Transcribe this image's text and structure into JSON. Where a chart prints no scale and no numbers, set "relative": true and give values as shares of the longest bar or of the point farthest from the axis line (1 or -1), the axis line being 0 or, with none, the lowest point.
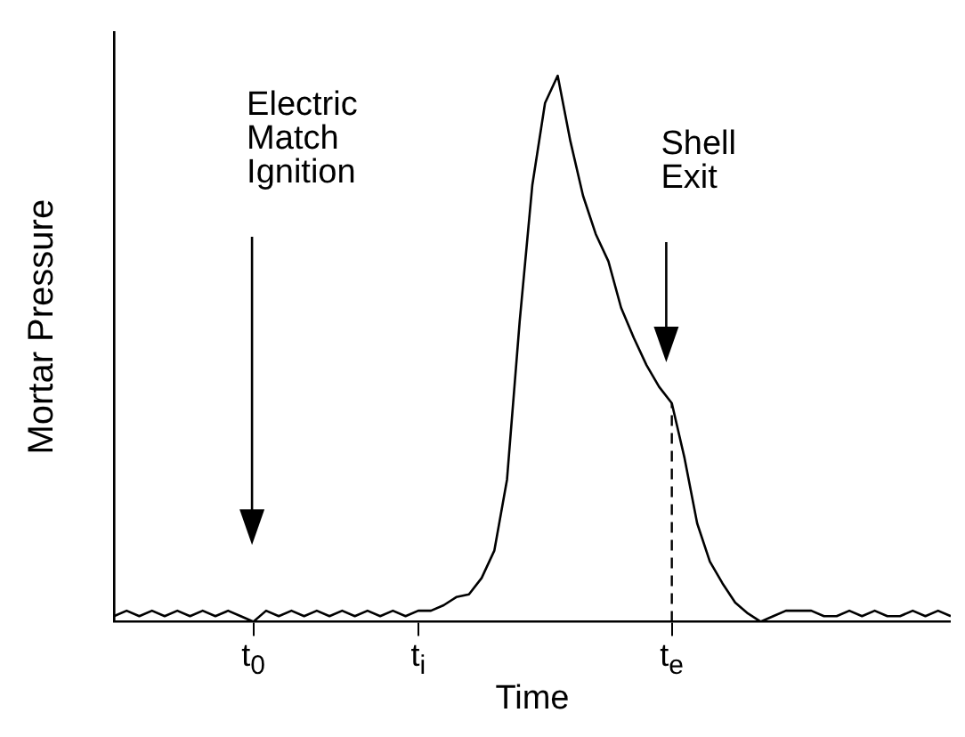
{
  "chart_data": {
    "type": "line",
    "relative": true,
    "xlabel": "Time",
    "ylabel": "Mortar Pressure",
    "categories": [
      null,
      null,
      null,
      null,
      null,
      null,
      null,
      null,
      null,
      null,
      null,
      "t$_{0}$",
      null,
      null,
      null,
      null,
      null,
      null,
      null,
      null,
      null,
      null,
      null,
      null,
      "t$_{i}$",
      null,
      null,
      null,
      null,
      null,
      null,
      null,
      null,
      null,
      null,
      null,
      null,
      null,
      null,
      null,
      null,
      null,
      null,
      null,
      "t$_{e}$",
      null,
      null,
      null,
      null,
      null,
      null,
      null,
      null,
      null,
      null,
      null,
      null,
      null,
      null,
      null,
      null,
      null,
      null,
      null,
      null,
      null,
      null
    ],
    "series": [
      {
        "color": "#000000",
        "values": [
          0.01,
          0.02,
          0.01,
          0.02,
          0.01,
          0.02,
          0.01,
          0.02,
          0.01,
          0.02,
          0.01,
          0.0,
          0.02,
          0.01,
          0.02,
          0.01,
          0.02,
          0.01,
          0.02,
          0.01,
          0.02,
          0.01,
          0.02,
          0.01,
          0.02,
          0.02,
          0.03,
          0.045,
          0.05,
          0.08,
          0.13,
          0.26,
          0.55,
          0.8,
          0.95,
          1.0,
          0.88,
          0.78,
          0.71,
          0.66,
          0.575,
          0.52,
          0.47,
          0.43,
          0.4,
          0.3,
          0.18,
          0.11,
          0.07,
          0.035,
          0.015,
          0.0,
          0.01,
          0.02,
          0.02,
          0.02,
          0.01,
          0.01,
          0.02,
          0.01,
          0.02,
          0.01,
          0.01,
          0.02,
          0.01,
          0.02,
          0.01
        ]
      }
    ],
    "grid": false,
    "legend": false,
    "marker": "none",
    "line_style": "solid",
    "tick_labels": "x",
    "ref_lines": [
      {
        "axis": "x",
        "value": "t$_{e}$",
        "line_style": "dashed",
        "color": "#000000"
      }
    ],
    "annotations": [
      "Electric Match Ignition",
      "Shell Exit"
    ]
  }
}
